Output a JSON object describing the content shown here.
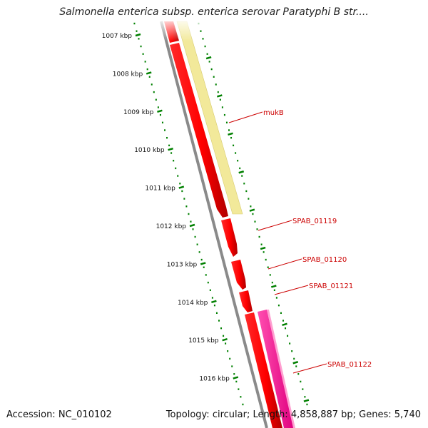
{
  "title": "Salmonella enterica subsp. enterica serovar Paratyphi B str....",
  "footer": {
    "accession_label": "Accession:",
    "accession": "NC_010102",
    "topology_label": "Topology:",
    "topology": "circular",
    "length_label": "Length:",
    "length": "4,858,887 bp",
    "genes_label": "Genes:",
    "genes": "5,740"
  },
  "ticks": [
    {
      "value": 1007,
      "label": "1007 kbp"
    },
    {
      "value": 1008,
      "label": "1008 kbp"
    },
    {
      "value": 1009,
      "label": "1009 kbp"
    },
    {
      "value": 1010,
      "label": "1010 kbp"
    },
    {
      "value": 1011,
      "label": "1011 kbp"
    },
    {
      "value": 1012,
      "label": "1012 kbp"
    },
    {
      "value": 1013,
      "label": "1013 kbp"
    },
    {
      "value": 1014,
      "label": "1014 kbp"
    },
    {
      "value": 1015,
      "label": "1015 kbp"
    },
    {
      "value": 1016,
      "label": "1016 kbp"
    }
  ],
  "genes": [
    {
      "name": "mukB"
    },
    {
      "name": "SPAB_01119"
    },
    {
      "name": "SPAB_01120"
    },
    {
      "name": "SPAB_01121"
    },
    {
      "name": "SPAB_01122"
    }
  ],
  "colors": {
    "cds": "#ff0000",
    "cds_dark": "#c00000",
    "mukB_track": "#f3ea9a",
    "gene_22_track": "#ff3399",
    "backbone": "#8a8a8a",
    "tick": "#008000",
    "label": "#cc0000"
  }
}
